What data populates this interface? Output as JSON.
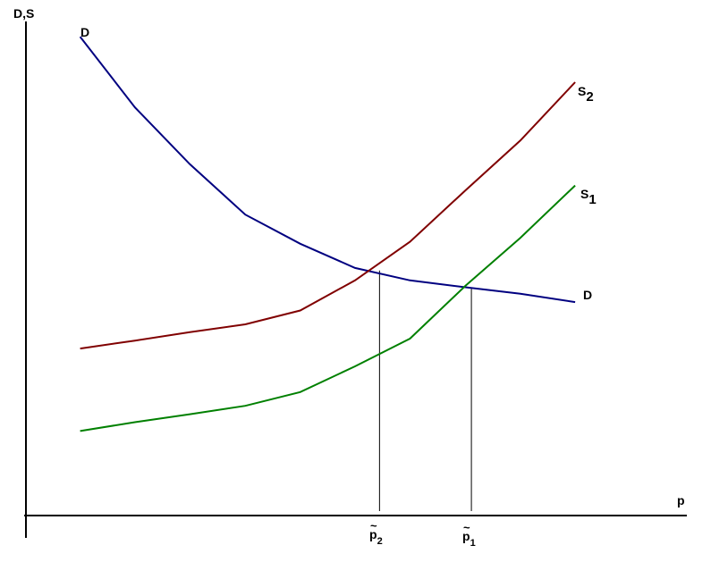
{
  "chart_data": {
    "type": "line",
    "title": "",
    "xlabel": "p",
    "ylabel": "D,S",
    "xlim": [
      0,
      100
    ],
    "ylim": [
      0,
      100
    ],
    "grid": false,
    "legend": "none",
    "series": [
      {
        "name": "D",
        "color": "#000080",
        "points": [
          [
            8.2,
            96.9
          ],
          [
            16.5,
            82.6
          ],
          [
            24.8,
            71.1
          ],
          [
            33.2,
            60.9
          ],
          [
            41.5,
            55.0
          ],
          [
            49.8,
            50.1
          ],
          [
            58.1,
            47.6
          ],
          [
            66.5,
            46.2
          ],
          [
            74.8,
            44.9
          ],
          [
            83.1,
            43.2
          ]
        ]
      },
      {
        "name": "S2",
        "color": "#800000",
        "points": [
          [
            8.2,
            33.8
          ],
          [
            16.5,
            35.4
          ],
          [
            24.8,
            37.1
          ],
          [
            33.2,
            38.7
          ],
          [
            41.5,
            41.5
          ],
          [
            49.8,
            47.6
          ],
          [
            58.1,
            55.4
          ],
          [
            66.5,
            65.8
          ],
          [
            74.8,
            75.9
          ],
          [
            83.1,
            87.7
          ]
        ]
      },
      {
        "name": "S1",
        "color": "#008000",
        "points": [
          [
            8.2,
            17.1
          ],
          [
            16.5,
            18.9
          ],
          [
            24.8,
            20.5
          ],
          [
            33.2,
            22.2
          ],
          [
            41.5,
            25.0
          ],
          [
            49.8,
            30.2
          ],
          [
            58.1,
            35.8
          ],
          [
            66.5,
            46.5
          ],
          [
            74.8,
            56.2
          ],
          [
            83.1,
            66.8
          ]
        ]
      }
    ],
    "series_labels": [
      {
        "text": "D",
        "sub": "",
        "color": "#000000"
      },
      {
        "text": "S",
        "sub": "2",
        "color": "#000000"
      },
      {
        "text": "S",
        "sub": "1",
        "color": "#000000"
      },
      {
        "text": "D",
        "sub": "",
        "color": "#000000"
      }
    ],
    "markers": [
      {
        "x": 53.5,
        "y": 49.6,
        "text": "p",
        "sub": "2",
        "accent": "~"
      },
      {
        "x": 67.4,
        "y": 45.9,
        "text": "p",
        "sub": "1",
        "accent": "~"
      }
    ]
  }
}
